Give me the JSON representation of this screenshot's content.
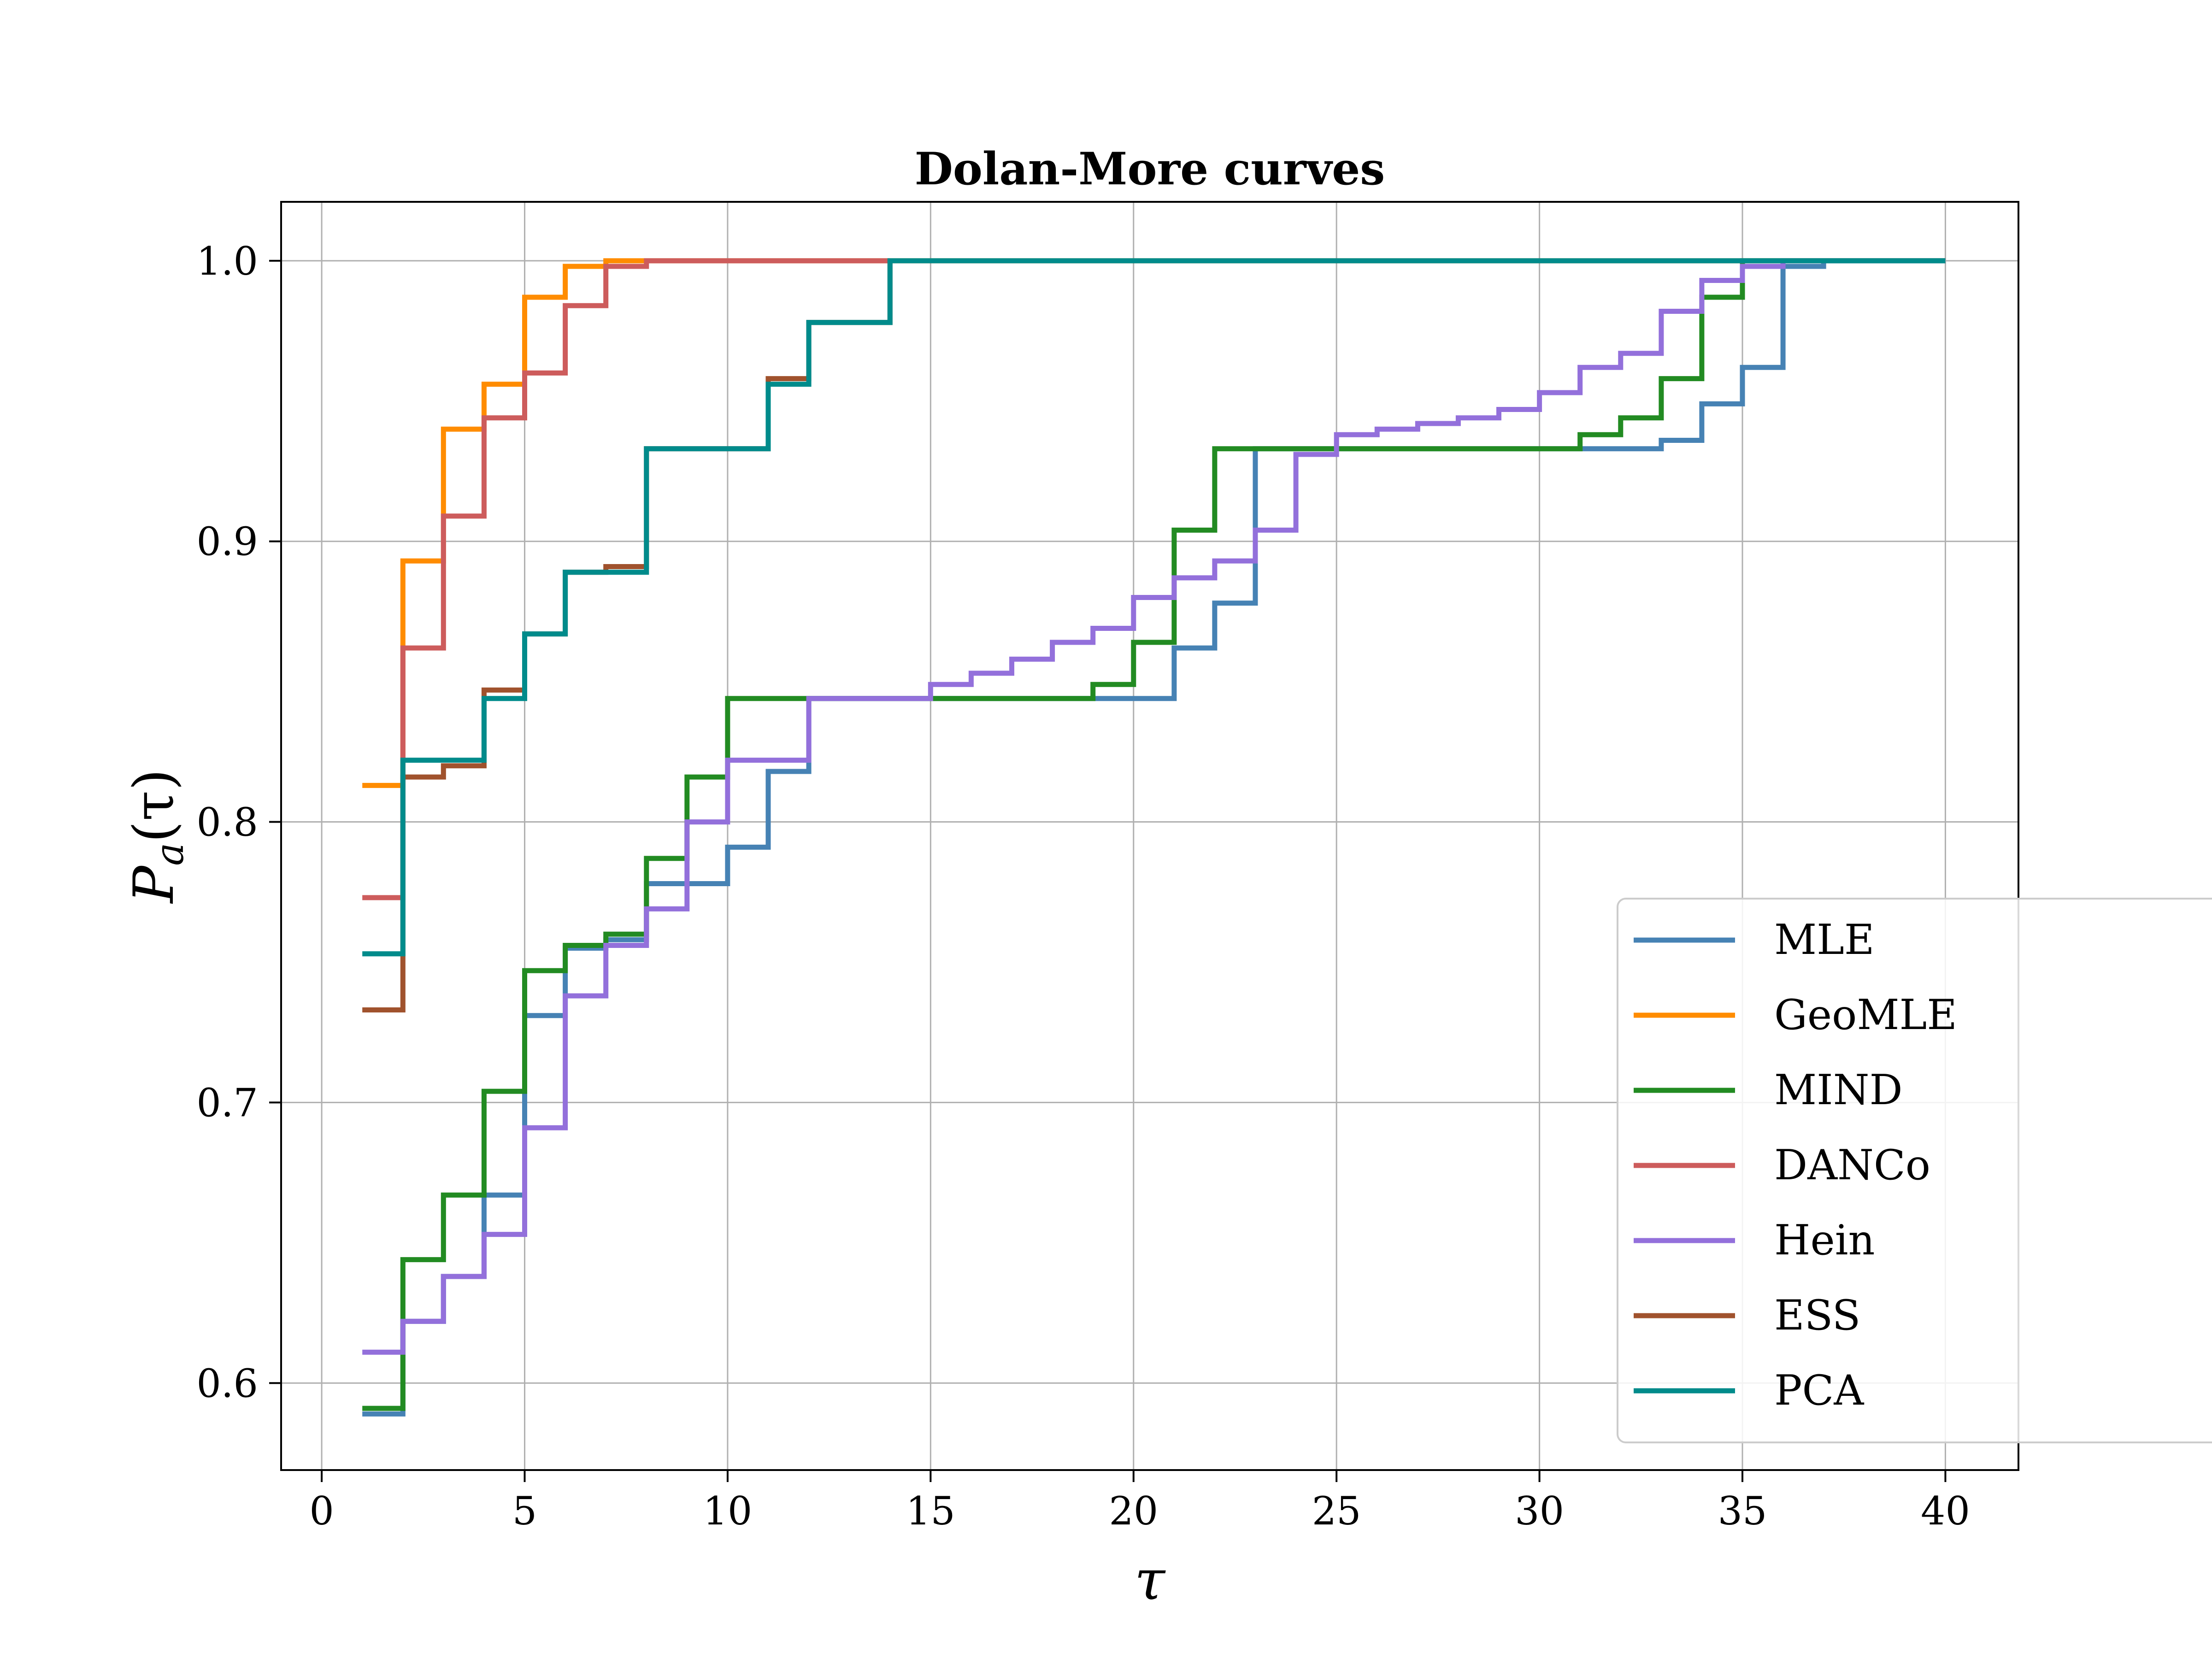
{
  "chart_data": {
    "type": "line",
    "step": "post",
    "title": "Dolan-More curves",
    "xlabel": "τ",
    "ylabel": "P_a(τ)",
    "ylabel_base": "P",
    "ylabel_sub": "a",
    "ylabel_arg": "(τ)",
    "xlim": [
      -1,
      41.8
    ],
    "ylim": [
      0.569,
      1.021
    ],
    "xticks": [
      0,
      5,
      10,
      15,
      20,
      25,
      30,
      35,
      40
    ],
    "yticks": [
      0.6,
      0.7,
      0.8,
      0.9,
      1.0
    ],
    "xtick_labels": [
      "0",
      "5",
      "10",
      "15",
      "20",
      "25",
      "30",
      "35",
      "40"
    ],
    "ytick_labels": [
      "0.6",
      "0.7",
      "0.8",
      "0.9",
      "1.0"
    ],
    "grid": true,
    "legend_position": "bottom-right",
    "series": [
      {
        "name": "MLE",
        "color": "#4682b4",
        "x": [
          1,
          2,
          3,
          4,
          5,
          6,
          7,
          8,
          9,
          10,
          11,
          12,
          13,
          14,
          15,
          16,
          17,
          18,
          19,
          20,
          21,
          22,
          23,
          24,
          25,
          26,
          27,
          28,
          29,
          30,
          31,
          32,
          33,
          34,
          35,
          36,
          37
        ],
        "y": [
          0.589,
          0.622,
          0.638,
          0.667,
          0.731,
          0.755,
          0.758,
          0.778,
          0.778,
          0.791,
          0.818,
          0.844,
          0.844,
          0.844,
          0.844,
          0.844,
          0.844,
          0.844,
          0.844,
          0.844,
          0.862,
          0.878,
          0.933,
          0.933,
          0.933,
          0.933,
          0.933,
          0.933,
          0.933,
          0.933,
          0.933,
          0.933,
          0.936,
          0.949,
          0.962,
          0.998,
          1.0
        ]
      },
      {
        "name": "GeoMLE",
        "color": "#ff8c00",
        "x": [
          1,
          2,
          3,
          4,
          5,
          6,
          7,
          8,
          40
        ],
        "y": [
          0.813,
          0.893,
          0.94,
          0.956,
          0.987,
          0.998,
          1.0,
          1.0,
          1.0
        ]
      },
      {
        "name": "MIND",
        "color": "#228b22",
        "x": [
          1,
          2,
          3,
          4,
          5,
          6,
          7,
          8,
          9,
          10,
          11,
          12,
          13,
          14,
          15,
          16,
          17,
          18,
          19,
          20,
          21,
          22,
          23,
          24,
          25,
          26,
          27,
          28,
          29,
          30,
          31,
          32,
          33,
          34,
          35,
          36,
          40
        ],
        "y": [
          0.591,
          0.644,
          0.667,
          0.704,
          0.747,
          0.756,
          0.76,
          0.787,
          0.816,
          0.844,
          0.844,
          0.844,
          0.844,
          0.844,
          0.844,
          0.844,
          0.844,
          0.844,
          0.849,
          0.864,
          0.904,
          0.933,
          0.933,
          0.933,
          0.933,
          0.933,
          0.933,
          0.933,
          0.933,
          0.933,
          0.938,
          0.944,
          0.958,
          0.987,
          1.0,
          1.0,
          1.0
        ]
      },
      {
        "name": "DANCo",
        "color": "#cd5c5c",
        "x": [
          1,
          2,
          3,
          4,
          5,
          6,
          7,
          8,
          14
        ],
        "y": [
          0.773,
          0.862,
          0.909,
          0.944,
          0.96,
          0.984,
          0.998,
          1.0,
          1.0
        ]
      },
      {
        "name": "Hein",
        "color": "#9370db",
        "x": [
          1,
          2,
          3,
          4,
          5,
          6,
          7,
          8,
          9,
          10,
          11,
          12,
          13,
          14,
          15,
          16,
          17,
          18,
          19,
          20,
          21,
          22,
          23,
          24,
          25,
          26,
          27,
          28,
          29,
          30,
          31,
          32,
          33,
          34,
          35,
          36,
          40
        ],
        "y": [
          0.611,
          0.622,
          0.638,
          0.653,
          0.691,
          0.738,
          0.756,
          0.769,
          0.8,
          0.822,
          0.822,
          0.844,
          0.844,
          0.844,
          0.849,
          0.853,
          0.858,
          0.864,
          0.869,
          0.88,
          0.887,
          0.893,
          0.904,
          0.931,
          0.938,
          0.94,
          0.942,
          0.944,
          0.947,
          0.953,
          0.962,
          0.967,
          0.982,
          0.993,
          0.998,
          1.0,
          1.0
        ]
      },
      {
        "name": "ESS",
        "color": "#a0522d",
        "x": [
          1,
          2,
          3,
          4,
          5,
          6,
          7,
          8,
          9,
          10,
          11,
          12,
          13,
          14
        ],
        "y": [
          0.733,
          0.816,
          0.82,
          0.847,
          0.867,
          0.889,
          0.891,
          0.933,
          0.933,
          0.933,
          0.958,
          0.978,
          0.978,
          1.0
        ]
      },
      {
        "name": "PCA",
        "color": "#008b8b",
        "x": [
          1,
          2,
          3,
          4,
          5,
          6,
          7,
          8,
          9,
          10,
          11,
          12,
          13,
          14,
          40
        ],
        "y": [
          0.753,
          0.822,
          0.822,
          0.844,
          0.867,
          0.889,
          0.889,
          0.933,
          0.933,
          0.933,
          0.956,
          0.978,
          0.978,
          1.0,
          1.0
        ]
      }
    ]
  }
}
